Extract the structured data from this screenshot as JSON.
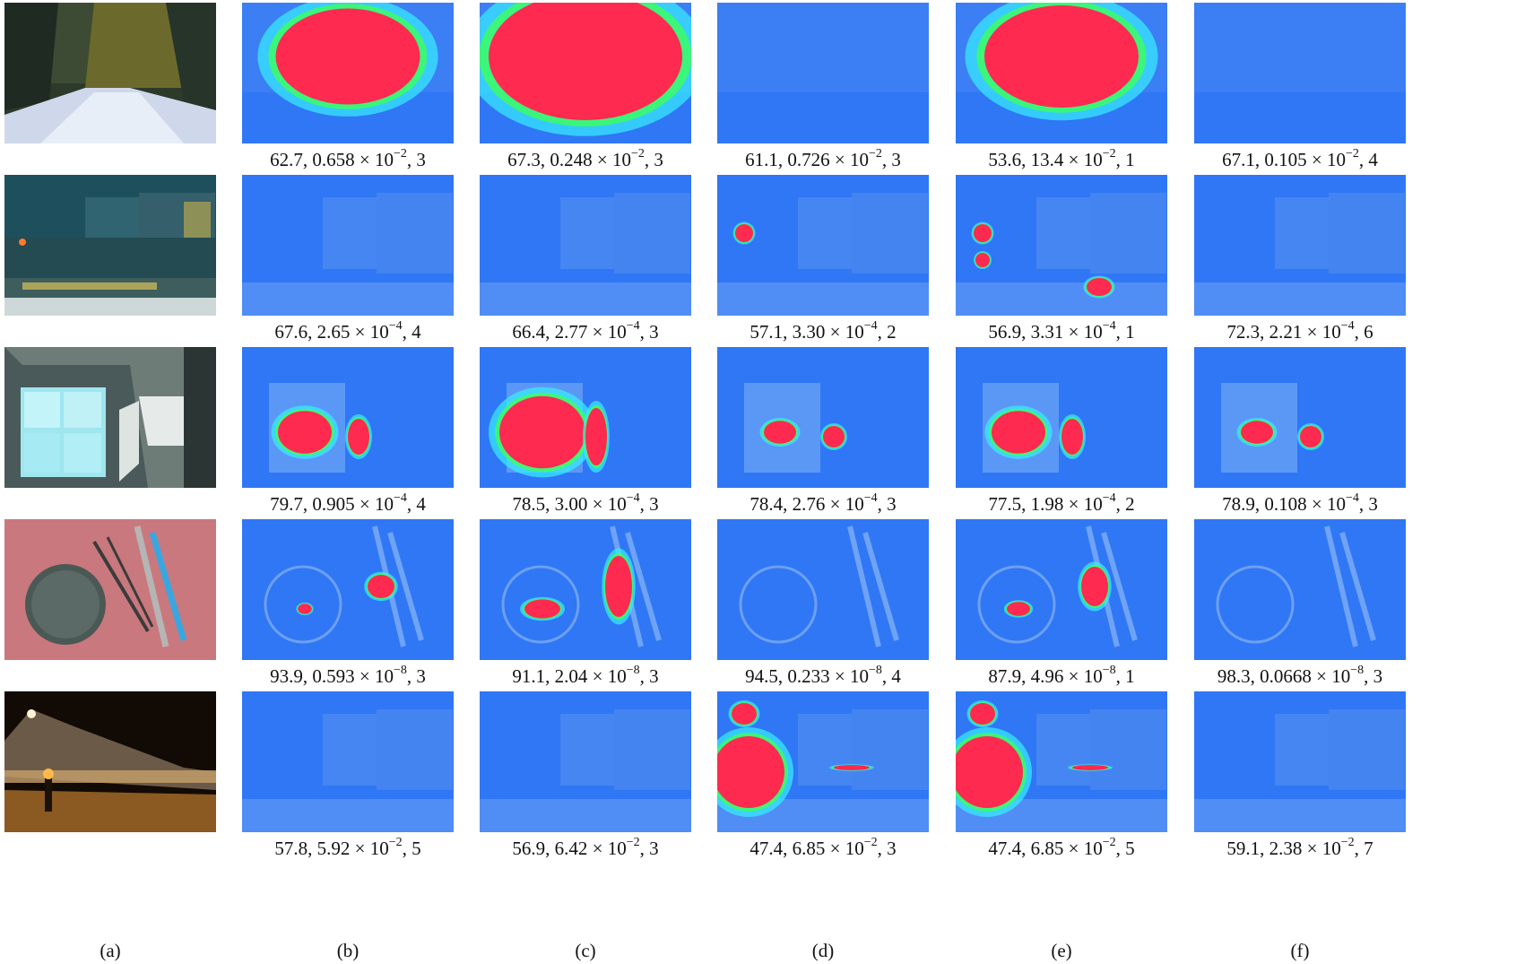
{
  "column_labels": [
    "(a)",
    "(b)",
    "(c)",
    "(d)",
    "(e)",
    "(f)"
  ],
  "rows": [
    {
      "scene": "snow-forest",
      "captions": [
        {
          "pre": "62.7, 0.658 × 10",
          "exp": "−2",
          "post": ", 3"
        },
        {
          "pre": "67.3, 0.248 × 10",
          "exp": "−2",
          "post": ", 3"
        },
        {
          "pre": "61.1, 0.726 × 10",
          "exp": "−2",
          "post": ", 3"
        },
        {
          "pre": "53.6, 13.4 × 10",
          "exp": "−2",
          "post": ", 1"
        },
        {
          "pre": "67.1, 0.105 × 10",
          "exp": "−2",
          "post": ", 4"
        }
      ]
    },
    {
      "scene": "city-night",
      "captions": [
        {
          "pre": "67.6, 2.65 × 10",
          "exp": "−4",
          "post": ", 4"
        },
        {
          "pre": "66.4, 2.77 × 10",
          "exp": "−4",
          "post": ", 3"
        },
        {
          "pre": "57.1, 3.30 × 10",
          "exp": "−4",
          "post": ", 2"
        },
        {
          "pre": "56.9, 3.31 × 10",
          "exp": "−4",
          "post": ", 1"
        },
        {
          "pre": "72.3, 2.21 × 10",
          "exp": "−4",
          "post": ", 6"
        }
      ]
    },
    {
      "scene": "room-window",
      "captions": [
        {
          "pre": "79.7, 0.905 × 10",
          "exp": "−4",
          "post": ", 4"
        },
        {
          "pre": "78.5, 3.00 × 10",
          "exp": "−4",
          "post": ", 3"
        },
        {
          "pre": "78.4, 2.76 × 10",
          "exp": "−4",
          "post": ", 3"
        },
        {
          "pre": "77.5, 1.98 × 10",
          "exp": "−4",
          "post": ", 2"
        },
        {
          "pre": "78.9, 0.108 × 10",
          "exp": "−4",
          "post": ", 3"
        }
      ]
    },
    {
      "scene": "lens-cap-pens",
      "captions": [
        {
          "pre": "93.9, 0.593 × 10",
          "exp": "−8",
          "post": ", 3"
        },
        {
          "pre": "91.1, 2.04 × 10",
          "exp": "−8",
          "post": ", 3"
        },
        {
          "pre": "94.5, 0.233 × 10",
          "exp": "−8",
          "post": ", 4"
        },
        {
          "pre": "87.9, 4.96 × 10",
          "exp": "−8",
          "post": ", 1"
        },
        {
          "pre": "98.3, 0.0668 × 10",
          "exp": "−8",
          "post": ", 3"
        }
      ]
    },
    {
      "scene": "building-night",
      "captions": [
        {
          "pre": "57.8, 5.92 × 10",
          "exp": "−2",
          "post": ", 5"
        },
        {
          "pre": "56.9, 6.42 × 10",
          "exp": "−2",
          "post": ", 3"
        },
        {
          "pre": "47.4, 6.85 × 10",
          "exp": "−2",
          "post": ", 3"
        },
        {
          "pre": "47.4, 6.85 × 10",
          "exp": "−2",
          "post": ", 5"
        },
        {
          "pre": "59.1, 2.38 × 10",
          "exp": "−2",
          "post": ", 7"
        }
      ]
    }
  ],
  "colors": {
    "heat_red": "#ff2a4f",
    "heat_green": "#3dff5a",
    "heat_cyan": "#36f0ff",
    "heat_base": "#1e6cf5"
  },
  "red_level": [
    [
      0.55,
      0.8,
      0.0,
      0.6,
      0.0
    ],
    [
      0.0,
      0.0,
      0.1,
      0.25,
      0.0
    ],
    [
      0.25,
      0.55,
      0.05,
      0.25,
      0.05
    ],
    [
      0.05,
      0.4,
      0.0,
      0.2,
      0.0
    ],
    [
      0.0,
      0.0,
      0.45,
      0.45,
      0.0
    ]
  ]
}
